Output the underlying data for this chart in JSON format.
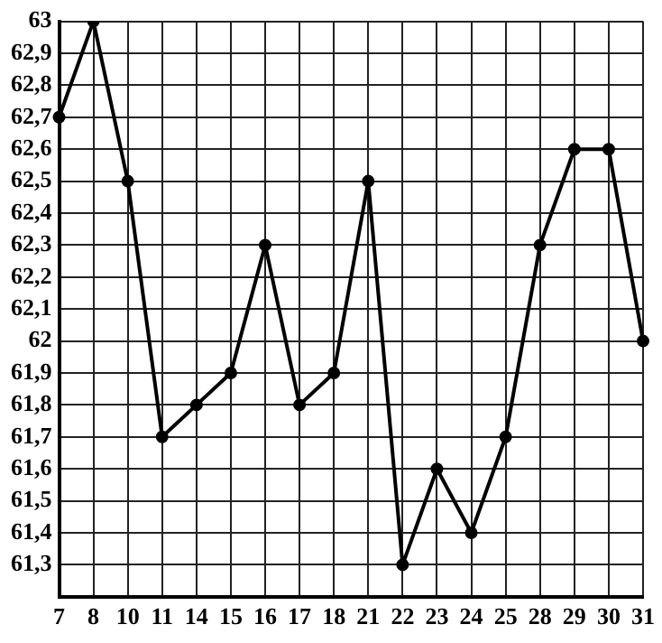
{
  "chart_data": {
    "type": "line",
    "categories": [
      "7",
      "8",
      "10",
      "11",
      "14",
      "15",
      "16",
      "17",
      "18",
      "21",
      "22",
      "23",
      "24",
      "25",
      "28",
      "29",
      "30",
      "31"
    ],
    "series": [
      {
        "color": "#000000",
        "values": [
          62.7,
          63,
          62.5,
          61.7,
          61.8,
          61.9,
          62.3,
          61.8,
          61.9,
          62.5,
          61.3,
          61.6,
          61.4,
          61.7,
          62.3,
          62.6,
          62.6,
          62.0
        ]
      }
    ],
    "ylim": [
      61.2,
      63
    ],
    "yticks": [
      {
        "value": 61.2,
        "label": null
      },
      {
        "value": 61.3,
        "label": "61,3"
      },
      {
        "value": 61.4,
        "label": "61,4"
      },
      {
        "value": 61.5,
        "label": "61,5"
      },
      {
        "value": 61.6,
        "label": "61,6"
      },
      {
        "value": 61.7,
        "label": "61,7"
      },
      {
        "value": 61.8,
        "label": "61,8"
      },
      {
        "value": 61.9,
        "label": "61,9"
      },
      62,
      {
        "value": 62.1,
        "label": "62,1"
      },
      {
        "value": 62.2,
        "label": "62,2"
      },
      {
        "value": 62.3,
        "label": "62,3"
      },
      {
        "value": 62.4,
        "label": "62,4"
      },
      {
        "value": 62.5,
        "label": "62,5"
      },
      {
        "value": 62.6,
        "label": "62,6"
      },
      {
        "value": 62.7,
        "label": "62,7"
      },
      {
        "value": 62.8,
        "label": "62,8"
      },
      {
        "value": 62.9,
        "label": "62,9"
      },
      63
    ],
    "grid": true,
    "legend": false,
    "marker": "circle",
    "line_style": "solid"
  }
}
